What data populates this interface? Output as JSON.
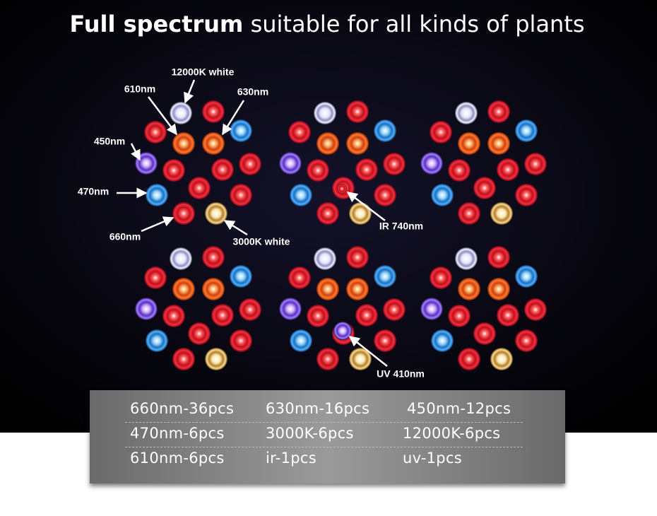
{
  "header": {
    "title_bold": "Full spectrum",
    "title_rest": "suitable for all kinds of plants"
  },
  "annotations": [
    {
      "label": "12000K white"
    },
    {
      "label": "610nm"
    },
    {
      "label": "630nm"
    },
    {
      "label": "450nm"
    },
    {
      "label": "470nm"
    },
    {
      "label": "660nm"
    },
    {
      "label": "3000K white"
    },
    {
      "label": "IR 740nm"
    },
    {
      "label": "UV 410nm"
    }
  ],
  "table": {
    "rows": [
      [
        "660nm-36pcs",
        "630nm-16pcs",
        "450nm-12pcs"
      ],
      [
        "470nm-6pcs",
        "3000K-6pcs",
        "12000K-6pcs"
      ],
      [
        "610nm-6pcs",
        "ir-1pcs",
        "uv-1pcs"
      ]
    ]
  }
}
